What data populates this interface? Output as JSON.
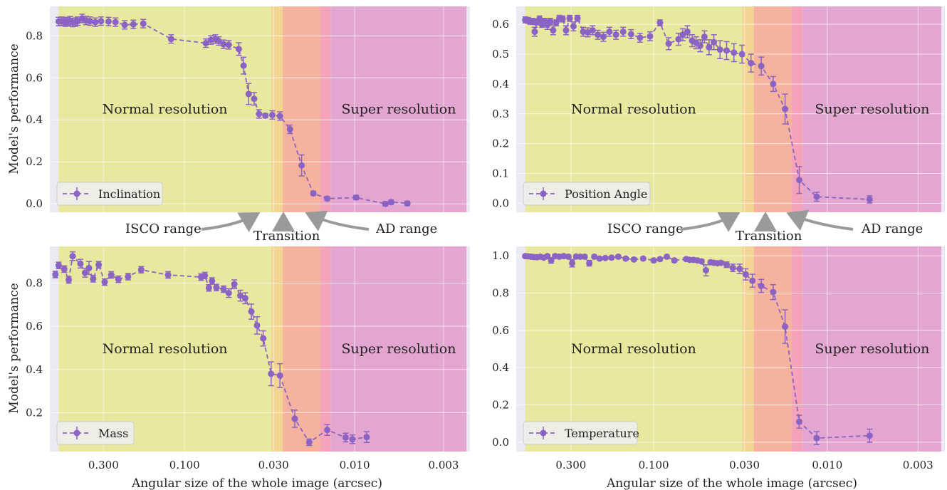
{
  "shared": {
    "ylabel": "Model's performance",
    "xlabel": "Angular size of the whole image (arcsec)",
    "x_ticks": [
      0.3,
      0.1,
      0.03,
      0.01,
      0.003
    ],
    "x_tick_labels": [
      "0.300",
      "0.100",
      "0.030",
      "0.010",
      "0.003"
    ],
    "xlim": [
      0.62,
      0.0021
    ],
    "x_scale": "log-reversed",
    "regions": {
      "normal": {
        "label": "Normal resolution",
        "from": 0.55,
        "to": 0.031
      },
      "isco_band": {
        "from": 0.031,
        "to": 0.0265
      },
      "transition_band": {
        "from": 0.0265,
        "to": 0.016
      },
      "ad_band": {
        "from": 0.016,
        "to": 0.0138
      },
      "super": {
        "label": "Super resolution",
        "from": 0.0138,
        "to": 0.0022
      }
    },
    "colors": {
      "background": "#eaeaf2",
      "grid": "#ffffff",
      "normal": "#e9e89a",
      "isco": "#f4d38c",
      "transition": "#f5b09a",
      "ad": "#f59fb4",
      "super": "#e2a2cf",
      "series": "#8a63c4",
      "arrow": "#9a9a9a"
    }
  },
  "annotations": {
    "isco": "ISCO range",
    "transition": "Transition",
    "ad": "AD range"
  },
  "chart_data": [
    {
      "type": "line",
      "series_name": "Inclination",
      "ylim": [
        -0.04,
        0.94
      ],
      "yticks": [
        0.0,
        0.2,
        0.4,
        0.6,
        0.8
      ],
      "ytick_labels": [
        "0.0",
        "0.2",
        "0.4",
        "0.6",
        "0.8"
      ],
      "points": [
        {
          "x": 0.55,
          "y": 0.868,
          "e": 0.02
        },
        {
          "x": 0.53,
          "y": 0.87,
          "e": 0.02
        },
        {
          "x": 0.515,
          "y": 0.868,
          "e": 0.02
        },
        {
          "x": 0.5,
          "y": 0.865,
          "e": 0.02
        },
        {
          "x": 0.485,
          "y": 0.868,
          "e": 0.02
        },
        {
          "x": 0.47,
          "y": 0.872,
          "e": 0.02
        },
        {
          "x": 0.455,
          "y": 0.863,
          "e": 0.02
        },
        {
          "x": 0.44,
          "y": 0.865,
          "e": 0.02
        },
        {
          "x": 0.425,
          "y": 0.87,
          "e": 0.02
        },
        {
          "x": 0.4,
          "y": 0.883,
          "e": 0.02
        },
        {
          "x": 0.38,
          "y": 0.873,
          "e": 0.02
        },
        {
          "x": 0.36,
          "y": 0.87,
          "e": 0.02
        },
        {
          "x": 0.335,
          "y": 0.865,
          "e": 0.02
        },
        {
          "x": 0.31,
          "y": 0.87,
          "e": 0.02
        },
        {
          "x": 0.28,
          "y": 0.868,
          "e": 0.02
        },
        {
          "x": 0.255,
          "y": 0.865,
          "e": 0.02
        },
        {
          "x": 0.225,
          "y": 0.852,
          "e": 0.02
        },
        {
          "x": 0.2,
          "y": 0.855,
          "e": 0.02
        },
        {
          "x": 0.175,
          "y": 0.858,
          "e": 0.02
        },
        {
          "x": 0.12,
          "y": 0.785,
          "e": 0.02
        },
        {
          "x": 0.075,
          "y": 0.765,
          "e": 0.02
        },
        {
          "x": 0.07,
          "y": 0.78,
          "e": 0.02
        },
        {
          "x": 0.066,
          "y": 0.785,
          "e": 0.02
        },
        {
          "x": 0.063,
          "y": 0.775,
          "e": 0.02
        },
        {
          "x": 0.059,
          "y": 0.76,
          "e": 0.02
        },
        {
          "x": 0.055,
          "y": 0.757,
          "e": 0.02
        },
        {
          "x": 0.048,
          "y": 0.737,
          "e": 0.03
        },
        {
          "x": 0.045,
          "y": 0.658,
          "e": 0.04
        },
        {
          "x": 0.042,
          "y": 0.523,
          "e": 0.05
        },
        {
          "x": 0.039,
          "y": 0.5,
          "e": 0.03
        },
        {
          "x": 0.0365,
          "y": 0.428,
          "e": 0.02
        },
        {
          "x": 0.0335,
          "y": 0.42,
          "e": 0.01
        },
        {
          "x": 0.0305,
          "y": 0.423,
          "e": 0.02
        },
        {
          "x": 0.0275,
          "y": 0.418,
          "e": 0.02
        },
        {
          "x": 0.024,
          "y": 0.355,
          "e": 0.02
        },
        {
          "x": 0.0205,
          "y": 0.183,
          "e": 0.05
        },
        {
          "x": 0.0175,
          "y": 0.05,
          "e": 0.01
        },
        {
          "x": 0.0145,
          "y": 0.025,
          "e": 0.01
        },
        {
          "x": 0.0098,
          "y": 0.03,
          "e": 0.01
        },
        {
          "x": 0.0066,
          "y": 0.0,
          "e": 0.01
        },
        {
          "x": 0.0061,
          "y": 0.008,
          "e": 0.01
        },
        {
          "x": 0.0049,
          "y": 0.002,
          "e": 0.01
        }
      ]
    },
    {
      "type": "line",
      "series_name": "Position Angle",
      "ylim": [
        -0.03,
        0.66
      ],
      "yticks": [
        0.0,
        0.1,
        0.2,
        0.3,
        0.4,
        0.5,
        0.6
      ],
      "ytick_labels": [
        "0.0",
        "0.1",
        "0.2",
        "0.3",
        "0.4",
        "0.5",
        "0.6"
      ],
      "points": [
        {
          "x": 0.55,
          "y": 0.615,
          "e": 0.01
        },
        {
          "x": 0.53,
          "y": 0.613,
          "e": 0.01
        },
        {
          "x": 0.515,
          "y": 0.61,
          "e": 0.01
        },
        {
          "x": 0.5,
          "y": 0.61,
          "e": 0.01
        },
        {
          "x": 0.485,
          "y": 0.575,
          "e": 0.015
        },
        {
          "x": 0.47,
          "y": 0.608,
          "e": 0.01
        },
        {
          "x": 0.455,
          "y": 0.618,
          "e": 0.01
        },
        {
          "x": 0.44,
          "y": 0.6,
          "e": 0.01
        },
        {
          "x": 0.425,
          "y": 0.61,
          "e": 0.01
        },
        {
          "x": 0.41,
          "y": 0.598,
          "e": 0.015
        },
        {
          "x": 0.395,
          "y": 0.61,
          "e": 0.01
        },
        {
          "x": 0.38,
          "y": 0.58,
          "e": 0.015
        },
        {
          "x": 0.365,
          "y": 0.605,
          "e": 0.01
        },
        {
          "x": 0.35,
          "y": 0.62,
          "e": 0.01
        },
        {
          "x": 0.335,
          "y": 0.618,
          "e": 0.01
        },
        {
          "x": 0.32,
          "y": 0.58,
          "e": 0.015
        },
        {
          "x": 0.305,
          "y": 0.62,
          "e": 0.01
        },
        {
          "x": 0.29,
          "y": 0.593,
          "e": 0.015
        },
        {
          "x": 0.275,
          "y": 0.62,
          "e": 0.01
        },
        {
          "x": 0.255,
          "y": 0.575,
          "e": 0.015
        },
        {
          "x": 0.24,
          "y": 0.573,
          "e": 0.015
        },
        {
          "x": 0.225,
          "y": 0.58,
          "e": 0.015
        },
        {
          "x": 0.21,
          "y": 0.565,
          "e": 0.015
        },
        {
          "x": 0.195,
          "y": 0.558,
          "e": 0.015
        },
        {
          "x": 0.18,
          "y": 0.575,
          "e": 0.015
        },
        {
          "x": 0.165,
          "y": 0.565,
          "e": 0.015
        },
        {
          "x": 0.15,
          "y": 0.575,
          "e": 0.015
        },
        {
          "x": 0.135,
          "y": 0.567,
          "e": 0.015
        },
        {
          "x": 0.12,
          "y": 0.555,
          "e": 0.015
        },
        {
          "x": 0.105,
          "y": 0.56,
          "e": 0.015
        },
        {
          "x": 0.092,
          "y": 0.605,
          "e": 0.01
        },
        {
          "x": 0.082,
          "y": 0.535,
          "e": 0.02
        },
        {
          "x": 0.072,
          "y": 0.55,
          "e": 0.02
        },
        {
          "x": 0.068,
          "y": 0.565,
          "e": 0.02
        },
        {
          "x": 0.064,
          "y": 0.575,
          "e": 0.02
        },
        {
          "x": 0.06,
          "y": 0.545,
          "e": 0.02
        },
        {
          "x": 0.057,
          "y": 0.538,
          "e": 0.02
        },
        {
          "x": 0.054,
          "y": 0.528,
          "e": 0.02
        },
        {
          "x": 0.051,
          "y": 0.558,
          "e": 0.02
        },
        {
          "x": 0.048,
          "y": 0.523,
          "e": 0.025
        },
        {
          "x": 0.045,
          "y": 0.54,
          "e": 0.025
        },
        {
          "x": 0.0415,
          "y": 0.515,
          "e": 0.03
        },
        {
          "x": 0.038,
          "y": 0.512,
          "e": 0.03
        },
        {
          "x": 0.0345,
          "y": 0.505,
          "e": 0.03
        },
        {
          "x": 0.031,
          "y": 0.5,
          "e": 0.03
        },
        {
          "x": 0.0275,
          "y": 0.47,
          "e": 0.03
        },
        {
          "x": 0.024,
          "y": 0.46,
          "e": 0.03
        },
        {
          "x": 0.0205,
          "y": 0.4,
          "e": 0.025
        },
        {
          "x": 0.0175,
          "y": 0.316,
          "e": 0.05
        },
        {
          "x": 0.0145,
          "y": 0.078,
          "e": 0.045
        },
        {
          "x": 0.0115,
          "y": 0.022,
          "e": 0.015
        },
        {
          "x": 0.0057,
          "y": 0.013,
          "e": 0.012
        }
      ]
    },
    {
      "type": "line",
      "series_name": "Mass",
      "ylim": [
        0.02,
        0.97
      ],
      "yticks": [
        0.2,
        0.4,
        0.6,
        0.8
      ],
      "ytick_labels": [
        "0.2",
        "0.4",
        "0.6",
        "0.8"
      ],
      "points": [
        {
          "x": 0.575,
          "y": 0.84,
          "e": 0.015
        },
        {
          "x": 0.55,
          "y": 0.882,
          "e": 0.015
        },
        {
          "x": 0.51,
          "y": 0.865,
          "e": 0.015
        },
        {
          "x": 0.48,
          "y": 0.815,
          "e": 0.015
        },
        {
          "x": 0.455,
          "y": 0.925,
          "e": 0.02
        },
        {
          "x": 0.41,
          "y": 0.89,
          "e": 0.02
        },
        {
          "x": 0.385,
          "y": 0.848,
          "e": 0.02
        },
        {
          "x": 0.365,
          "y": 0.87,
          "e": 0.03
        },
        {
          "x": 0.345,
          "y": 0.82,
          "e": 0.015
        },
        {
          "x": 0.32,
          "y": 0.885,
          "e": 0.015
        },
        {
          "x": 0.295,
          "y": 0.805,
          "e": 0.015
        },
        {
          "x": 0.27,
          "y": 0.838,
          "e": 0.015
        },
        {
          "x": 0.245,
          "y": 0.818,
          "e": 0.015
        },
        {
          "x": 0.215,
          "y": 0.83,
          "e": 0.015
        },
        {
          "x": 0.18,
          "y": 0.862,
          "e": 0.015
        },
        {
          "x": 0.125,
          "y": 0.838,
          "e": 0.015
        },
        {
          "x": 0.08,
          "y": 0.828,
          "e": 0.015
        },
        {
          "x": 0.076,
          "y": 0.835,
          "e": 0.015
        },
        {
          "x": 0.072,
          "y": 0.778,
          "e": 0.015
        },
        {
          "x": 0.069,
          "y": 0.81,
          "e": 0.015
        },
        {
          "x": 0.065,
          "y": 0.78,
          "e": 0.015
        },
        {
          "x": 0.059,
          "y": 0.772,
          "e": 0.015
        },
        {
          "x": 0.055,
          "y": 0.754,
          "e": 0.02
        },
        {
          "x": 0.051,
          "y": 0.795,
          "e": 0.02
        },
        {
          "x": 0.047,
          "y": 0.742,
          "e": 0.025
        },
        {
          "x": 0.044,
          "y": 0.73,
          "e": 0.025
        },
        {
          "x": 0.0405,
          "y": 0.668,
          "e": 0.035
        },
        {
          "x": 0.0375,
          "y": 0.604,
          "e": 0.04
        },
        {
          "x": 0.0345,
          "y": 0.544,
          "e": 0.035
        },
        {
          "x": 0.031,
          "y": 0.38,
          "e": 0.055
        },
        {
          "x": 0.0275,
          "y": 0.372,
          "e": 0.055
        },
        {
          "x": 0.0225,
          "y": 0.172,
          "e": 0.04
        },
        {
          "x": 0.0185,
          "y": 0.063,
          "e": 0.015
        },
        {
          "x": 0.0145,
          "y": 0.12,
          "e": 0.025
        },
        {
          "x": 0.0113,
          "y": 0.085,
          "e": 0.02
        },
        {
          "x": 0.0103,
          "y": 0.077,
          "e": 0.02
        },
        {
          "x": 0.0085,
          "y": 0.087,
          "e": 0.025
        }
      ]
    },
    {
      "type": "line",
      "series_name": "Temperature",
      "ylim": [
        -0.05,
        1.05
      ],
      "yticks": [
        0.0,
        0.2,
        0.4,
        0.6,
        0.8,
        1.0
      ],
      "ytick_labels": [
        "0.0",
        "0.2",
        "0.4",
        "0.6",
        "0.8",
        "1.0"
      ],
      "points": [
        {
          "x": 0.55,
          "y": 0.998,
          "e": 0.008
        },
        {
          "x": 0.53,
          "y": 0.997,
          "e": 0.008
        },
        {
          "x": 0.51,
          "y": 0.995,
          "e": 0.008
        },
        {
          "x": 0.49,
          "y": 0.993,
          "e": 0.008
        },
        {
          "x": 0.47,
          "y": 0.992,
          "e": 0.008
        },
        {
          "x": 0.45,
          "y": 0.995,
          "e": 0.008
        },
        {
          "x": 0.43,
          "y": 0.99,
          "e": 0.008
        },
        {
          "x": 0.41,
          "y": 0.998,
          "e": 0.008
        },
        {
          "x": 0.39,
          "y": 0.975,
          "e": 0.015
        },
        {
          "x": 0.37,
          "y": 0.998,
          "e": 0.008
        },
        {
          "x": 0.35,
          "y": 0.995,
          "e": 0.008
        },
        {
          "x": 0.33,
          "y": 0.998,
          "e": 0.008
        },
        {
          "x": 0.31,
          "y": 0.995,
          "e": 0.008
        },
        {
          "x": 0.295,
          "y": 0.96,
          "e": 0.02
        },
        {
          "x": 0.28,
          "y": 0.996,
          "e": 0.008
        },
        {
          "x": 0.265,
          "y": 0.995,
          "e": 0.008
        },
        {
          "x": 0.25,
          "y": 0.995,
          "e": 0.008
        },
        {
          "x": 0.235,
          "y": 0.96,
          "e": 0.015
        },
        {
          "x": 0.22,
          "y": 0.995,
          "e": 0.008
        },
        {
          "x": 0.205,
          "y": 0.985,
          "e": 0.008
        },
        {
          "x": 0.19,
          "y": 0.988,
          "e": 0.008
        },
        {
          "x": 0.175,
          "y": 0.99,
          "e": 0.008
        },
        {
          "x": 0.16,
          "y": 0.995,
          "e": 0.008
        },
        {
          "x": 0.145,
          "y": 0.985,
          "e": 0.008
        },
        {
          "x": 0.13,
          "y": 0.98,
          "e": 0.008
        },
        {
          "x": 0.115,
          "y": 0.985,
          "e": 0.008
        },
        {
          "x": 0.1,
          "y": 0.975,
          "e": 0.008
        },
        {
          "x": 0.092,
          "y": 0.982,
          "e": 0.008
        },
        {
          "x": 0.084,
          "y": 0.995,
          "e": 0.008
        },
        {
          "x": 0.076,
          "y": 0.975,
          "e": 0.008
        },
        {
          "x": 0.065,
          "y": 0.982,
          "e": 0.008
        },
        {
          "x": 0.062,
          "y": 0.978,
          "e": 0.008
        },
        {
          "x": 0.059,
          "y": 0.978,
          "e": 0.008
        },
        {
          "x": 0.056,
          "y": 0.975,
          "e": 0.008
        },
        {
          "x": 0.053,
          "y": 0.97,
          "e": 0.008
        },
        {
          "x": 0.05,
          "y": 0.922,
          "e": 0.03
        },
        {
          "x": 0.047,
          "y": 0.965,
          "e": 0.01
        },
        {
          "x": 0.045,
          "y": 0.962,
          "e": 0.01
        },
        {
          "x": 0.043,
          "y": 0.96,
          "e": 0.01
        },
        {
          "x": 0.041,
          "y": 0.962,
          "e": 0.01
        },
        {
          "x": 0.038,
          "y": 0.952,
          "e": 0.015
        },
        {
          "x": 0.035,
          "y": 0.935,
          "e": 0.02
        },
        {
          "x": 0.032,
          "y": 0.93,
          "e": 0.025
        },
        {
          "x": 0.0295,
          "y": 0.9,
          "e": 0.03
        },
        {
          "x": 0.027,
          "y": 0.866,
          "e": 0.035
        },
        {
          "x": 0.024,
          "y": 0.838,
          "e": 0.035
        },
        {
          "x": 0.0205,
          "y": 0.805,
          "e": 0.04
        },
        {
          "x": 0.0175,
          "y": 0.62,
          "e": 0.09
        },
        {
          "x": 0.0145,
          "y": 0.11,
          "e": 0.035
        },
        {
          "x": 0.0115,
          "y": 0.022,
          "e": 0.035
        },
        {
          "x": 0.0057,
          "y": 0.035,
          "e": 0.035
        }
      ]
    }
  ]
}
